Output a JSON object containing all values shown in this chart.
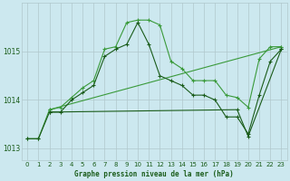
{
  "title": "Graphe pression niveau de la mer (hPa)",
  "background_color": "#cce8ef",
  "grid_color": "#b0c8cc",
  "line_color_dark": "#1a5c1a",
  "line_color_medium": "#3a9a3a",
  "xlim": [
    -0.5,
    23.5
  ],
  "ylim": [
    1012.75,
    1016.0
  ],
  "yticks": [
    1013,
    1014,
    1015
  ],
  "xticks": [
    0,
    1,
    2,
    3,
    4,
    5,
    6,
    7,
    8,
    9,
    10,
    11,
    12,
    13,
    14,
    15,
    16,
    17,
    18,
    19,
    20,
    21,
    22,
    23
  ],
  "seriesA": {
    "x": [
      0,
      1,
      2,
      3,
      4,
      5,
      6,
      7,
      8,
      9,
      10,
      11,
      12,
      13,
      14,
      15,
      16,
      17,
      18,
      19,
      20,
      21,
      22,
      23
    ],
    "y": [
      1013.2,
      1013.2,
      1013.8,
      1013.85,
      1014.05,
      1014.25,
      1014.4,
      1015.05,
      1015.1,
      1015.6,
      1015.65,
      1015.65,
      1015.55,
      1014.8,
      1014.65,
      1014.4,
      1014.4,
      1014.4,
      1014.1,
      1014.05,
      1013.85,
      1014.85,
      1015.1,
      1015.1
    ],
    "color": "#3a9a3a"
  },
  "seriesB": {
    "x": [
      0,
      1,
      2,
      3,
      4,
      5,
      6,
      7,
      8,
      9,
      10,
      11,
      12,
      13,
      14,
      15,
      16,
      17,
      18,
      19,
      20,
      21,
      22,
      23
    ],
    "y": [
      1013.2,
      1013.2,
      1013.75,
      1013.75,
      1014.0,
      1014.15,
      1014.3,
      1014.9,
      1015.05,
      1015.15,
      1015.6,
      1015.15,
      1014.5,
      1014.4,
      1014.3,
      1014.1,
      1014.1,
      1014.0,
      1013.65,
      1013.65,
      1013.3,
      1014.1,
      1014.8,
      1015.05
    ],
    "color": "#1a5c1a"
  },
  "seriesC": {
    "x": [
      2,
      23
    ],
    "y": [
      1013.8,
      1015.1
    ],
    "color": "#3a9a3a"
  },
  "seriesD": {
    "x": [
      2,
      19,
      20,
      23
    ],
    "y": [
      1013.75,
      1013.8,
      1013.25,
      1015.05
    ],
    "color": "#1a5c1a"
  }
}
